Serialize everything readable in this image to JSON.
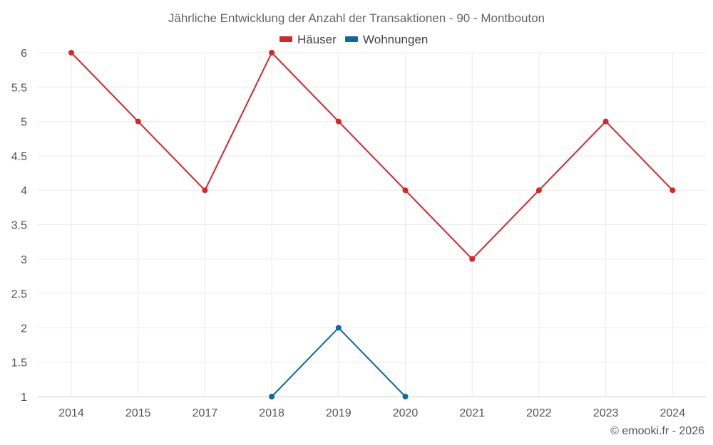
{
  "chart_data": {
    "type": "line",
    "title": "Jährliche Entwicklung der Anzahl der Transaktionen - 90 - Montbouton",
    "categories": [
      "2014",
      "2015",
      "2017",
      "2018",
      "2019",
      "2020",
      "2021",
      "2022",
      "2023",
      "2024"
    ],
    "ylim": [
      1,
      6
    ],
    "yticks": [
      "1",
      "1.5",
      "2",
      "2.5",
      "3",
      "3.5",
      "4",
      "4.5",
      "5",
      "5.5",
      "6"
    ],
    "ytick_values": [
      1,
      1.5,
      2,
      2.5,
      3,
      3.5,
      4,
      4.5,
      5,
      5.5,
      6
    ],
    "grid": true,
    "legend_position": "top-center",
    "series": [
      {
        "name": "Häuser",
        "color": "#d62728",
        "values": [
          6,
          5,
          4,
          6,
          5,
          4,
          3,
          4,
          5,
          4
        ]
      },
      {
        "name": "Wohnungen",
        "color": "#0a6aa1",
        "values": [
          null,
          null,
          null,
          1,
          2,
          1,
          null,
          null,
          null,
          null
        ]
      }
    ]
  },
  "credit": "© emooki.fr - 2026"
}
